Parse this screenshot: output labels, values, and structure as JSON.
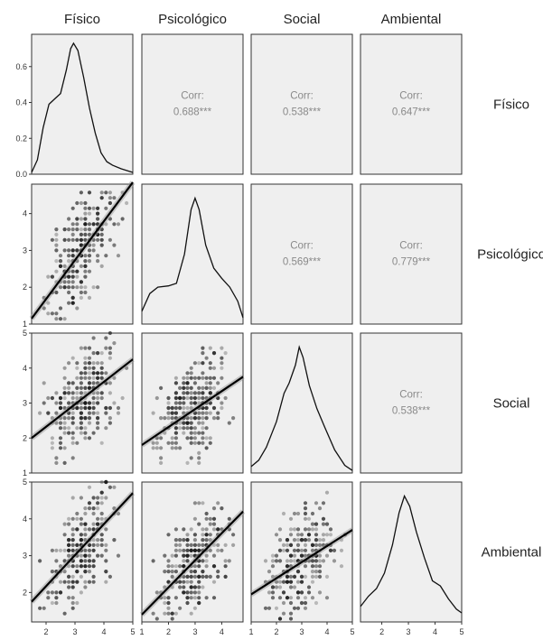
{
  "chart_data": {
    "type": "scatter",
    "variables": [
      "Físico",
      "Psicológico",
      "Social",
      "Ambiental"
    ],
    "row_labels": [
      "Físico",
      "Psicológico",
      "Social",
      "Ambiental"
    ],
    "corr_label": "Corr:",
    "correlations": [
      {
        "row": 0,
        "col": 1,
        "value": "0.688***"
      },
      {
        "row": 0,
        "col": 2,
        "value": "0.538***"
      },
      {
        "row": 0,
        "col": 3,
        "value": "0.647***"
      },
      {
        "row": 1,
        "col": 2,
        "value": "0.569***"
      },
      {
        "row": 1,
        "col": 3,
        "value": "0.779***"
      },
      {
        "row": 2,
        "col": 3,
        "value": "0.538***"
      }
    ],
    "ranges": [
      [
        1.5,
        5
      ],
      [
        1,
        4.8
      ],
      [
        1,
        5
      ],
      [
        1.2,
        5
      ]
    ],
    "density_ylim": [
      0,
      0.78
    ],
    "density_yticks": [
      "0.0",
      "0.2",
      "0.4",
      "0.6"
    ],
    "density_ytick_values": [
      0,
      0.2,
      0.4,
      0.6
    ],
    "y_ticks": [
      [
        "0.0",
        "0.2",
        "0.4",
        "0.6"
      ],
      [
        "1",
        "2",
        "3",
        "4"
      ],
      [
        "1",
        "2",
        "3",
        "4",
        "5"
      ],
      [
        "2",
        "3",
        "4",
        "5"
      ]
    ],
    "y_tick_values": [
      [],
      [
        1,
        2,
        3,
        4
      ],
      [
        1,
        2,
        3,
        4,
        5
      ],
      [
        2,
        3,
        4,
        5
      ]
    ],
    "x_ticks": [
      [
        "2",
        "3",
        "4",
        "5"
      ],
      [
        "1",
        "2",
        "3",
        "4"
      ],
      [
        "1",
        "2",
        "3",
        "4",
        "5"
      ],
      [
        "2",
        "3",
        "4",
        "5"
      ]
    ],
    "x_tick_values": [
      [
        2,
        3,
        4,
        5
      ],
      [
        1,
        2,
        3,
        4
      ],
      [
        1,
        2,
        3,
        4,
        5
      ],
      [
        2,
        3,
        4,
        5
      ]
    ],
    "densities": [
      {
        "var": 0,
        "points": [
          [
            1.5,
            0.01
          ],
          [
            1.7,
            0.08
          ],
          [
            1.9,
            0.26
          ],
          [
            2.1,
            0.39
          ],
          [
            2.3,
            0.42
          ],
          [
            2.5,
            0.45
          ],
          [
            2.7,
            0.58
          ],
          [
            2.85,
            0.7
          ],
          [
            2.95,
            0.73
          ],
          [
            3.1,
            0.69
          ],
          [
            3.3,
            0.54
          ],
          [
            3.5,
            0.37
          ],
          [
            3.7,
            0.23
          ],
          [
            3.9,
            0.12
          ],
          [
            4.1,
            0.07
          ],
          [
            4.3,
            0.05
          ],
          [
            4.6,
            0.03
          ],
          [
            5,
            0.01
          ]
        ]
      },
      {
        "var": 1,
        "points": [
          [
            1,
            0.1
          ],
          [
            1.3,
            0.24
          ],
          [
            1.6,
            0.29
          ],
          [
            2,
            0.3
          ],
          [
            2.3,
            0.32
          ],
          [
            2.6,
            0.55
          ],
          [
            2.85,
            0.9
          ],
          [
            3,
            0.99
          ],
          [
            3.15,
            0.9
          ],
          [
            3.4,
            0.62
          ],
          [
            3.7,
            0.44
          ],
          [
            4,
            0.36
          ],
          [
            4.3,
            0.29
          ],
          [
            4.6,
            0.18
          ],
          [
            4.8,
            0.05
          ]
        ]
      },
      {
        "var": 2,
        "points": [
          [
            1,
            0.05
          ],
          [
            1.3,
            0.1
          ],
          [
            1.6,
            0.2
          ],
          [
            2,
            0.4
          ],
          [
            2.3,
            0.62
          ],
          [
            2.5,
            0.7
          ],
          [
            2.75,
            0.84
          ],
          [
            2.9,
            0.98
          ],
          [
            3.05,
            0.9
          ],
          [
            3.3,
            0.68
          ],
          [
            3.6,
            0.5
          ],
          [
            3.9,
            0.36
          ],
          [
            4.3,
            0.18
          ],
          [
            4.7,
            0.06
          ],
          [
            5,
            0.02
          ]
        ]
      },
      {
        "var": 3,
        "points": [
          [
            1.2,
            0.12
          ],
          [
            1.5,
            0.2
          ],
          [
            1.8,
            0.26
          ],
          [
            2.1,
            0.38
          ],
          [
            2.4,
            0.6
          ],
          [
            2.65,
            0.85
          ],
          [
            2.85,
            0.98
          ],
          [
            3.05,
            0.9
          ],
          [
            3.3,
            0.7
          ],
          [
            3.6,
            0.5
          ],
          [
            3.9,
            0.32
          ],
          [
            4.2,
            0.28
          ],
          [
            4.5,
            0.18
          ],
          [
            4.8,
            0.1
          ],
          [
            5,
            0.07
          ]
        ]
      }
    ],
    "regressions": [
      {
        "row": 1,
        "col": 0,
        "x": [
          1.5,
          5
        ],
        "y": [
          1.15,
          4.85
        ]
      },
      {
        "row": 2,
        "col": 0,
        "x": [
          1.5,
          5
        ],
        "y": [
          2.0,
          4.25
        ]
      },
      {
        "row": 2,
        "col": 1,
        "x": [
          1,
          4.8
        ],
        "y": [
          1.8,
          3.75
        ]
      },
      {
        "row": 3,
        "col": 0,
        "x": [
          1.5,
          5
        ],
        "y": [
          1.75,
          4.7
        ]
      },
      {
        "row": 3,
        "col": 1,
        "x": [
          1,
          4.8
        ],
        "y": [
          1.4,
          4.2
        ]
      },
      {
        "row": 3,
        "col": 2,
        "x": [
          1,
          5
        ],
        "y": [
          1.95,
          3.7
        ]
      }
    ]
  }
}
